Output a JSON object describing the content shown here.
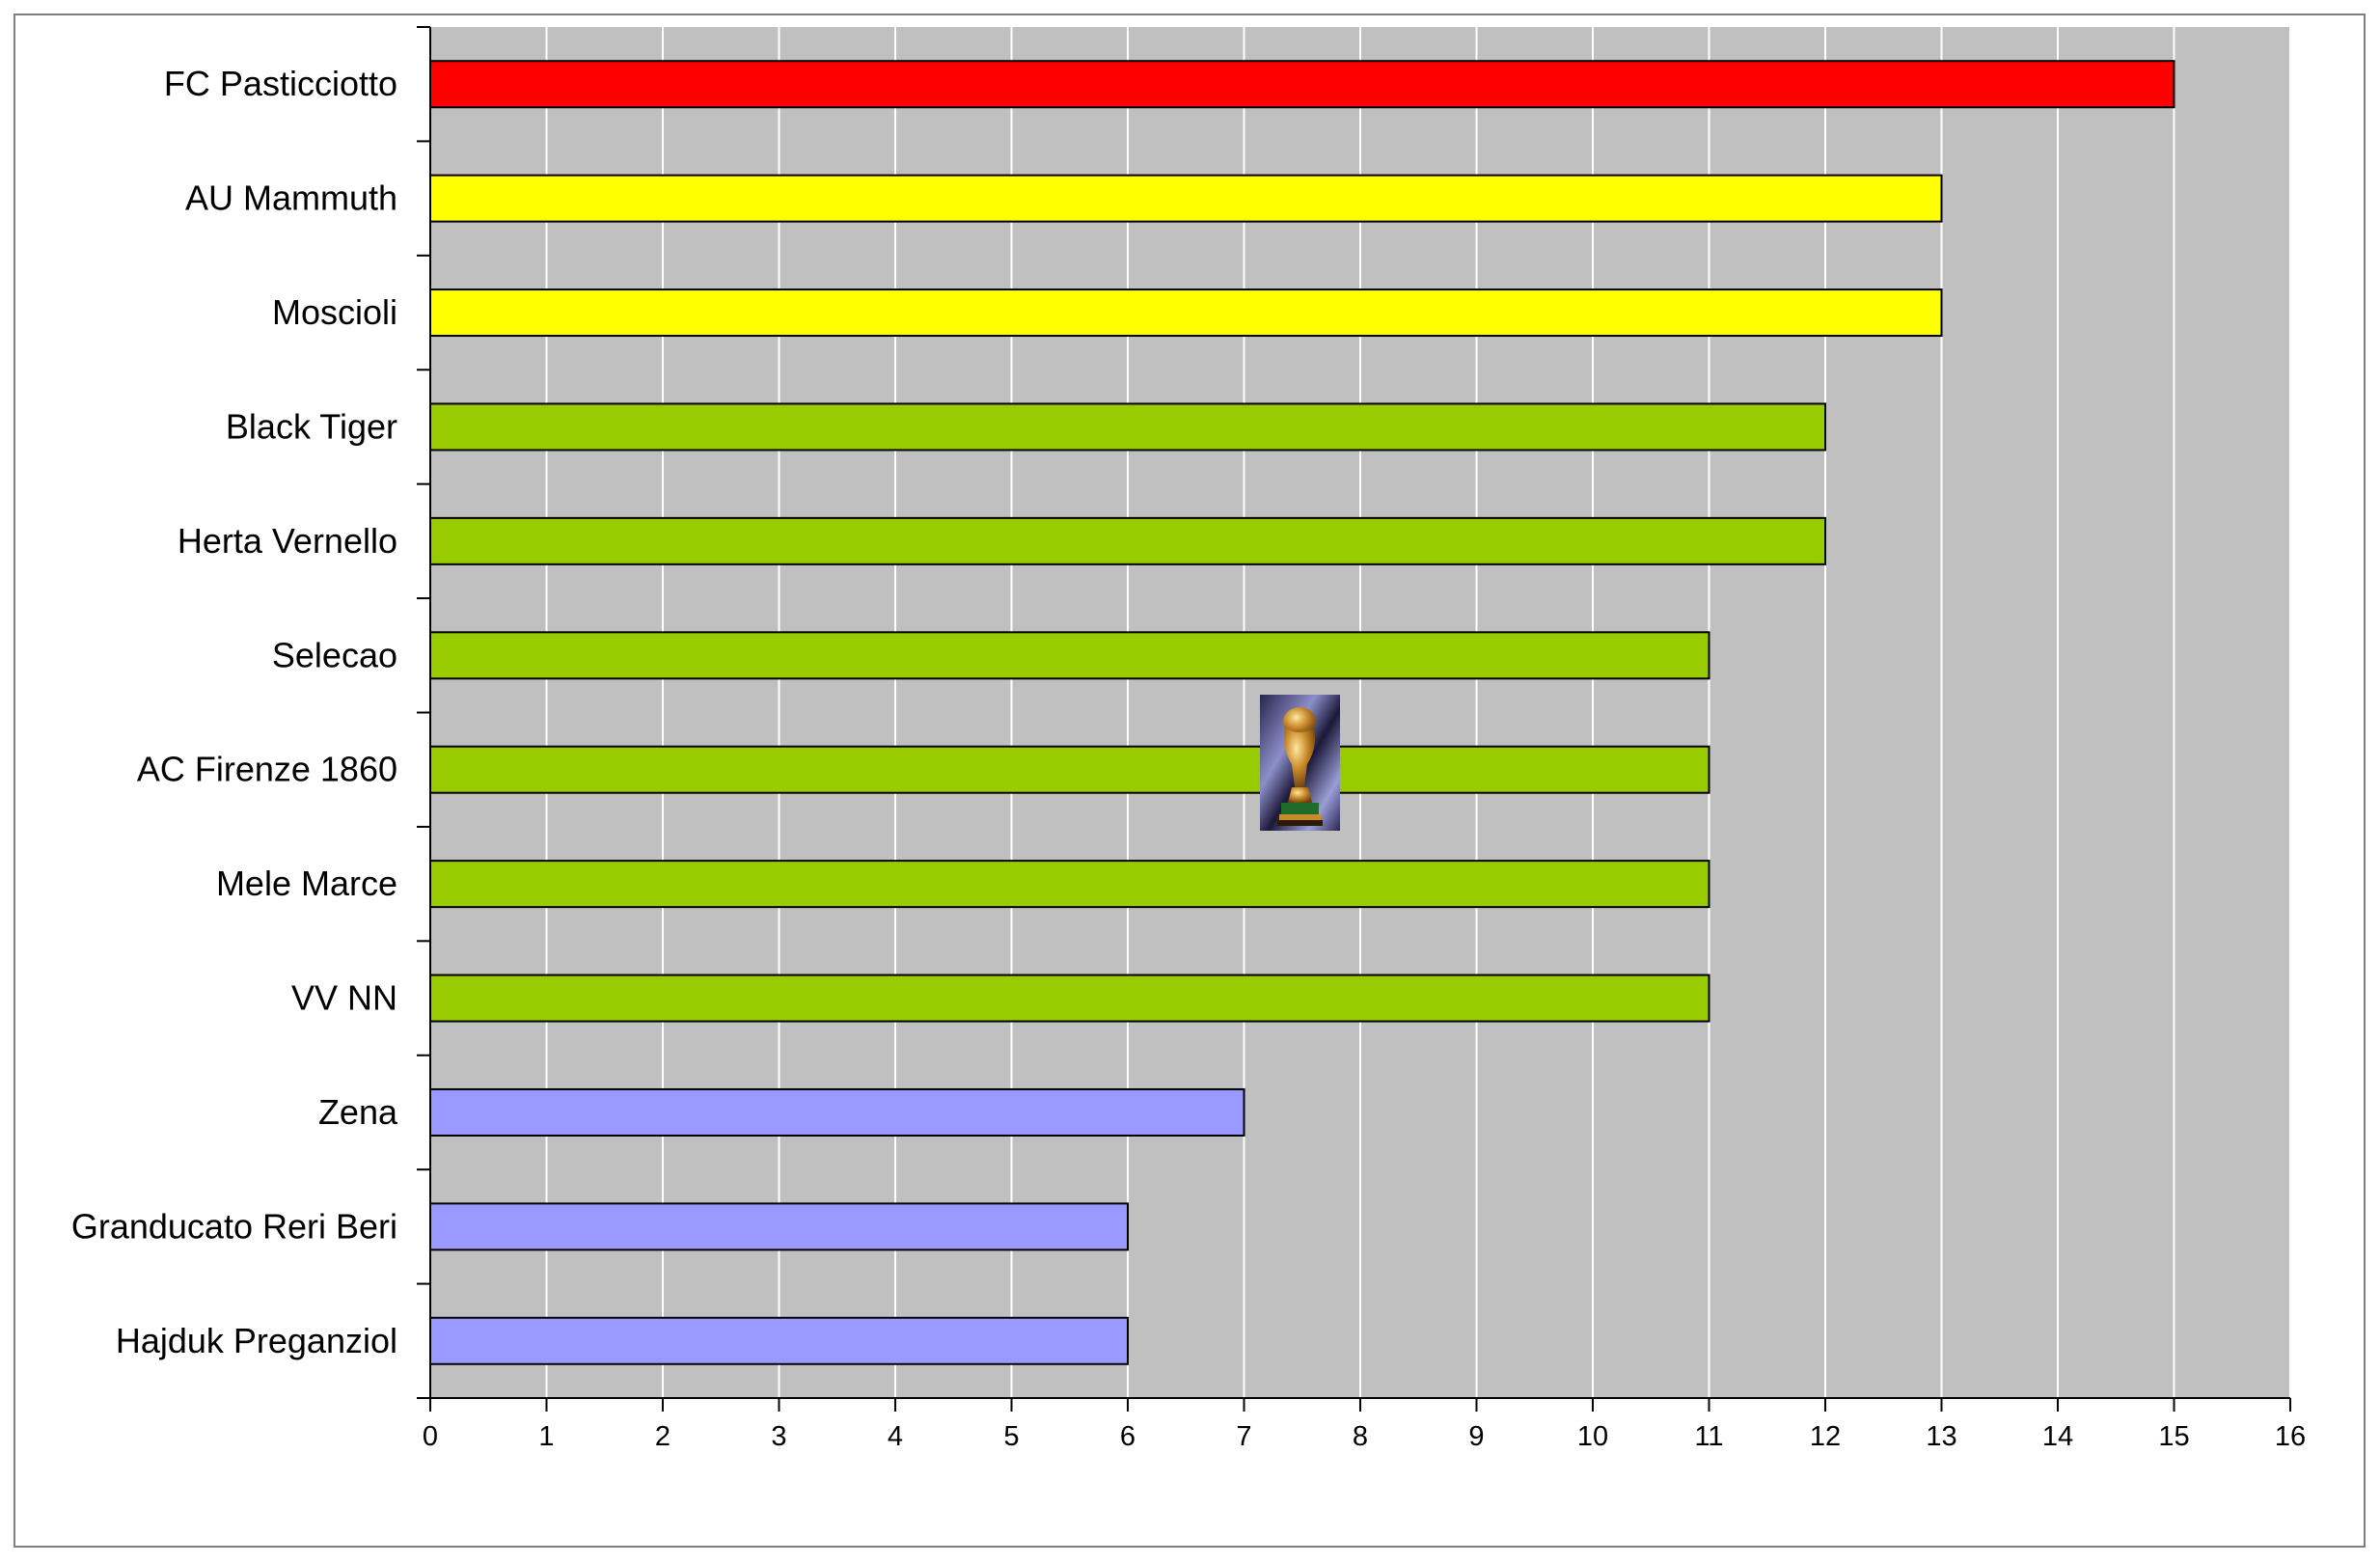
{
  "chart_data": {
    "type": "bar",
    "orientation": "horizontal",
    "categories": [
      "FC Pasticciotto",
      "AU Mammuth",
      "Moscioli",
      "Black Tiger",
      "Herta Vernello",
      "Selecao",
      "AC Firenze 1860",
      "Mele Marce",
      "VV NN",
      "Zena",
      "Granducato Reri Beri",
      "Hajduk Preganziol"
    ],
    "values": [
      15,
      13,
      13,
      12,
      12,
      11,
      11,
      11,
      11,
      7,
      6,
      6
    ],
    "colors": [
      "#ff0000",
      "#ffff00",
      "#ffff00",
      "#99cc00",
      "#99cc00",
      "#99cc00",
      "#99cc00",
      "#99cc00",
      "#99cc00",
      "#9999ff",
      "#9999ff",
      "#9999ff"
    ],
    "xlim": [
      0,
      16
    ],
    "xticks": [
      0,
      1,
      2,
      3,
      4,
      5,
      6,
      7,
      8,
      9,
      10,
      11,
      12,
      13,
      14,
      15,
      16
    ],
    "grid": true,
    "plot_background": "#c0c0c0",
    "gridline_color": "#ffffff",
    "title": "",
    "xlabel": "",
    "ylabel": "",
    "legend": "none",
    "decoration": "trophy-icon"
  }
}
